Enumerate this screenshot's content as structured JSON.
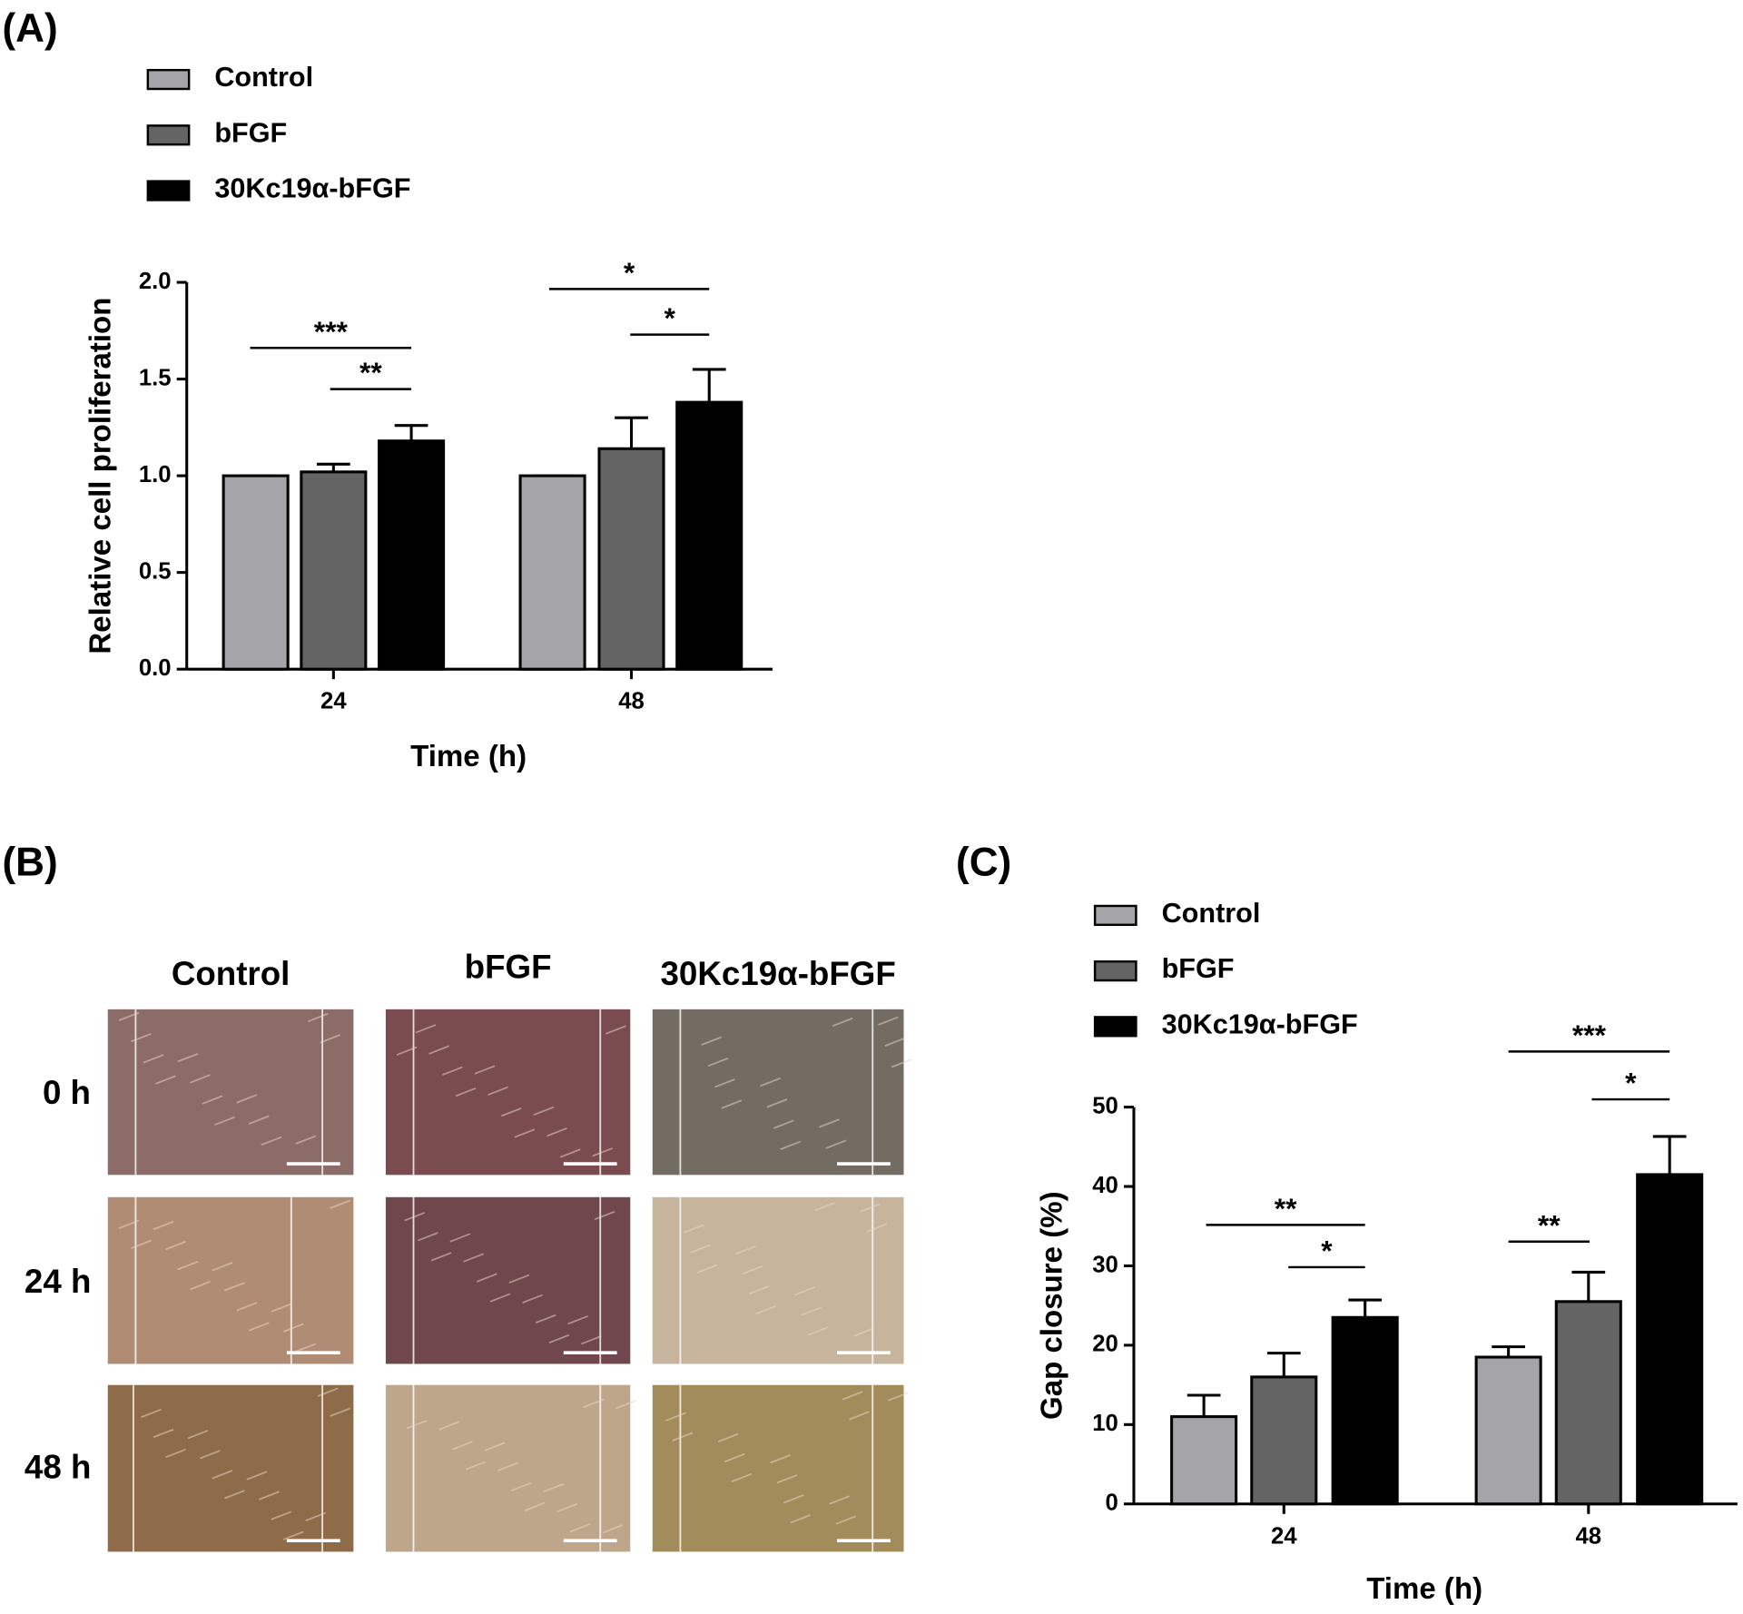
{
  "chart_data": [
    {
      "type": "bar",
      "panel_label": "(A)",
      "xlabel": "Time (h)",
      "ylabel": "Relative cell proliferation",
      "categories": [
        "24",
        "48"
      ],
      "series": [
        {
          "name": "Control",
          "color": "#a5a5a9",
          "values": [
            1.0,
            1.0
          ],
          "errors": [
            0,
            0
          ]
        },
        {
          "name": "bFGF",
          "color": "#646464",
          "values": [
            1.02,
            1.14
          ],
          "errors": [
            0.04,
            0.16
          ]
        },
        {
          "name": "30Kc19α-bFGF",
          "color": "#000000",
          "values": [
            1.18,
            1.38
          ],
          "errors": [
            0.08,
            0.17
          ]
        }
      ],
      "ylim": [
        0,
        2
      ],
      "yticks": [
        {
          "value": 0,
          "label": "0.0"
        },
        0.5,
        {
          "value": 1,
          "label": "1.0"
        },
        1.5,
        {
          "value": 2,
          "label": "2.0"
        }
      ],
      "annotations": [
        "***",
        "**",
        "*",
        "*"
      ]
    },
    {
      "type": "bar",
      "panel_label": "(C)",
      "xlabel": "Time (h)",
      "ylabel": "Gap closure (%)",
      "categories": [
        "24",
        "48"
      ],
      "series": [
        {
          "name": "Control",
          "color": "#a5a5a9",
          "values": [
            11,
            18.5
          ],
          "errors": [
            2.7,
            1.3
          ]
        },
        {
          "name": "bFGF",
          "color": "#646464",
          "values": [
            16,
            25.5
          ],
          "errors": [
            3,
            3.7
          ]
        },
        {
          "name": "30Kc19α-bFGF",
          "color": "#000000",
          "values": [
            23.5,
            41.5
          ],
          "errors": [
            2.2,
            4.8
          ]
        }
      ],
      "ylim": [
        0,
        50
      ],
      "yticks": [
        0,
        10,
        20,
        30,
        40,
        50
      ],
      "annotations": [
        "**",
        "*",
        "***",
        "*",
        "**"
      ]
    }
  ],
  "panel_b": {
    "label": "(B)",
    "columns": [
      "Control",
      "bFGF",
      "30Kc19α-bFGF"
    ],
    "rows": [
      "0 h",
      "24 h",
      "48 h"
    ]
  }
}
